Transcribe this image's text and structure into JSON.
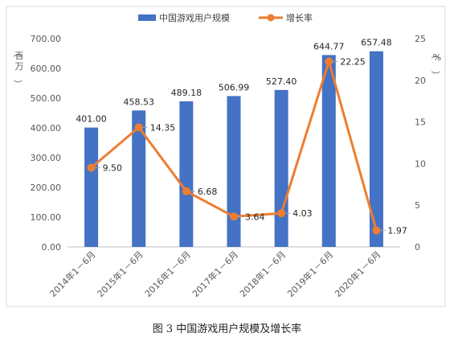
{
  "caption": "图 3 中国游戏用户规模及增长率",
  "chart_data": {
    "type": "bar",
    "categories": [
      "2014年1－6月",
      "2015年1－6月",
      "2016年1－6月",
      "2017年1－6月",
      "2018年1－6月",
      "2019年1－6月",
      "2020年1－6月"
    ],
    "series": [
      {
        "name": "中国游戏用户规模",
        "type": "bar",
        "axis": "left",
        "color": "#4472C4",
        "values": [
          401.0,
          458.53,
          489.18,
          506.99,
          527.4,
          644.77,
          657.48
        ],
        "labels": [
          "401.00",
          "458.53",
          "489.18",
          "506.99",
          "527.40",
          "644.77",
          "657.48"
        ]
      },
      {
        "name": "增长率",
        "type": "line",
        "axis": "right",
        "color": "#ED7D31",
        "values": [
          9.5,
          14.35,
          6.68,
          3.64,
          4.03,
          22.25,
          1.97
        ],
        "labels": [
          "9.50",
          "14.35",
          "6.68",
          "3.64",
          "4.03",
          "22.25",
          "1.97"
        ]
      }
    ],
    "y_left": {
      "label": "（百万）",
      "min": 0,
      "max": 700,
      "ticks": [
        0,
        100,
        200,
        300,
        400,
        500,
        600,
        700
      ],
      "tick_labels": [
        "0.00",
        "100.00",
        "200.00",
        "300.00",
        "400.00",
        "500.00",
        "600.00",
        "700.00"
      ]
    },
    "y_right": {
      "label": "（%）",
      "min": 0,
      "max": 25,
      "ticks": [
        0,
        5,
        10,
        15,
        20,
        25
      ],
      "tick_labels": [
        "0",
        "5",
        "10",
        "15",
        "20",
        "25"
      ]
    },
    "legend": {
      "position": "top"
    },
    "grid": false
  }
}
